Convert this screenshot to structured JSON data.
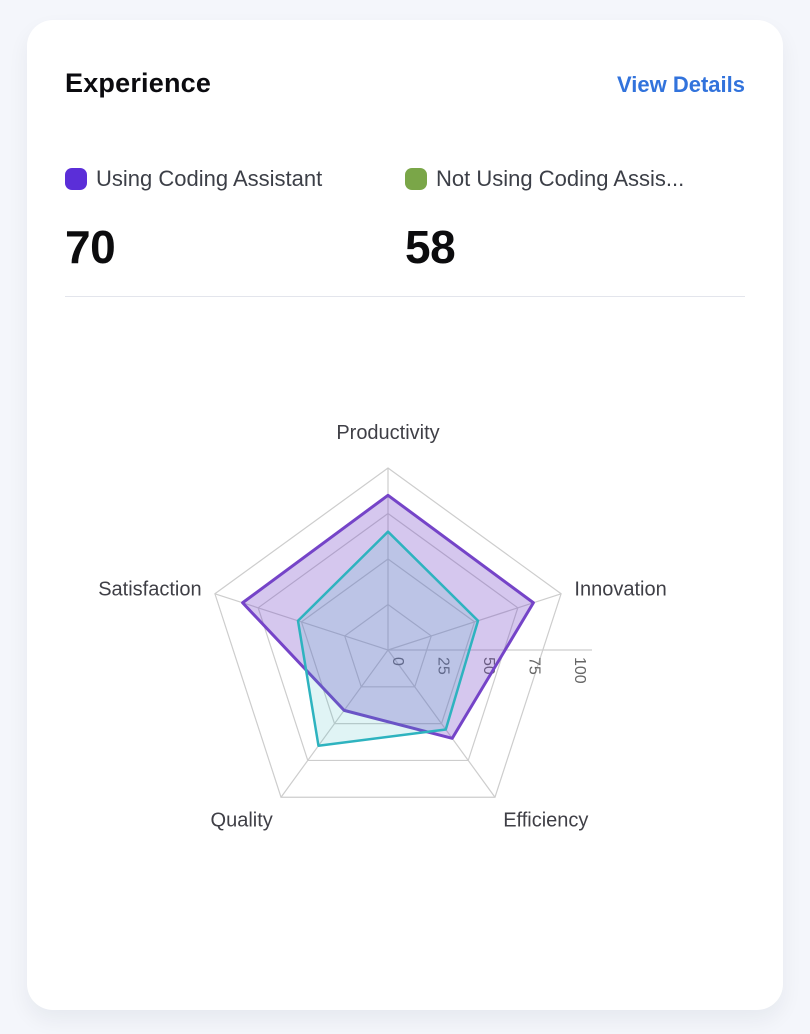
{
  "card": {
    "title": "Experience",
    "action_label": "View Details"
  },
  "legend": [
    {
      "label": "Using Coding Assistant",
      "value": "70",
      "swatch": "#5b2ed8"
    },
    {
      "label": "Not Using Coding Assis...",
      "value": "58",
      "swatch": "#7aa648"
    }
  ],
  "chart_data": {
    "type": "radar",
    "title": "Experience",
    "categories": [
      "Productivity",
      "Innovation",
      "Efficiency",
      "Quality",
      "Satisfaction"
    ],
    "series": [
      {
        "name": "Using Coding Assistant",
        "values": [
          85,
          84,
          60,
          41,
          84
        ],
        "stroke": "#7544c8",
        "fill": "rgba(117,68,200,0.30)",
        "stroke_width": 3
      },
      {
        "name": "Not Using Coding Assistant",
        "values": [
          65,
          52,
          54,
          65,
          52
        ],
        "stroke": "#2eb3bf",
        "fill": "rgba(46,179,191,0.15)",
        "stroke_width": 2.5
      }
    ],
    "radial_ticks": [
      0,
      25,
      50,
      75,
      100
    ],
    "max": 100,
    "axis_range": [
      0,
      100
    ],
    "grid": true,
    "grid_color": "#cdcdcd",
    "tick_color": "#666666",
    "label_color": "#3f3f46",
    "legend_position": "top"
  }
}
